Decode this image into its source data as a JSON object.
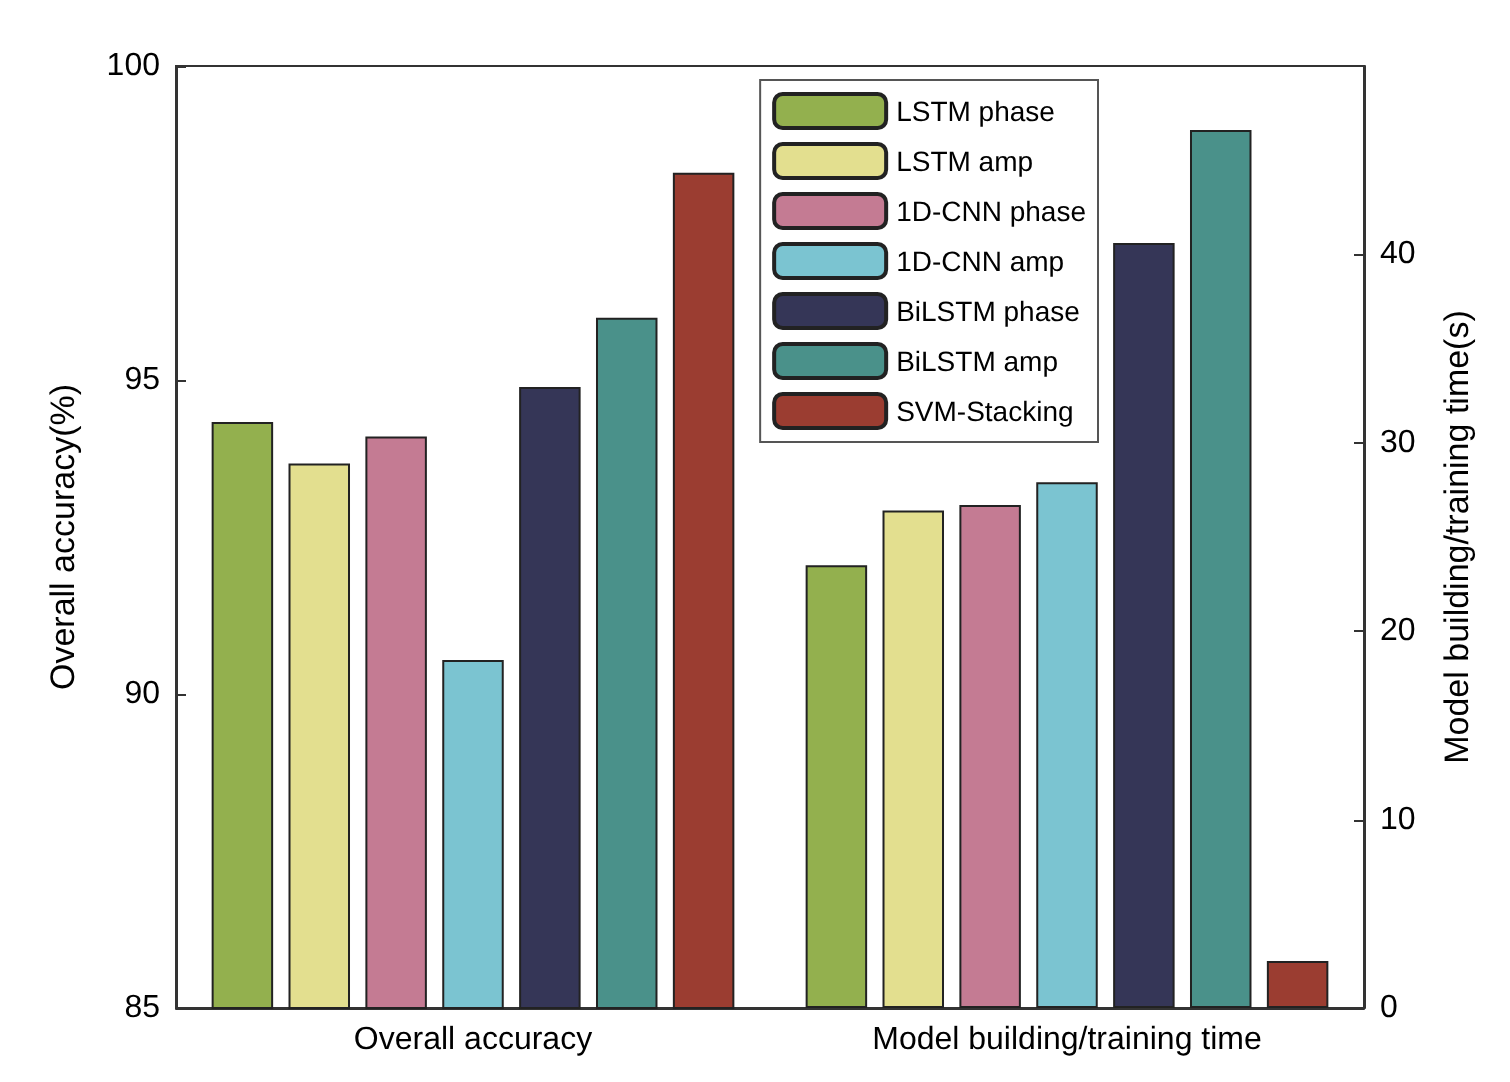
{
  "chart_data": {
    "type": "bar",
    "categories": [
      "Overall accuracy",
      "Model building/training time"
    ],
    "ylabel": "Overall accuracy(%)",
    "y2label": "Model building/training time(s)",
    "ylim": [
      85,
      100
    ],
    "yticks": [
      85,
      90,
      95,
      100
    ],
    "y2lim": [
      0,
      50
    ],
    "y2ticks": [
      0,
      10,
      20,
      30,
      40
    ],
    "legend": "top right",
    "grid": false,
    "series": [
      {
        "name": "LSTM phase",
        "color": "#93b04e",
        "values": [
          94.33,
          null
        ]
      },
      {
        "name": "LSTM amp",
        "color": "#e3df8f",
        "values": [
          93.67,
          null
        ]
      },
      {
        "name": "1D-CNN phase",
        "color": "#c47b93",
        "values": [
          94.1,
          null
        ]
      },
      {
        "name": "1D-CNN amp",
        "color": "#7bc4d1",
        "values": [
          90.54,
          null
        ]
      },
      {
        "name": "BiLSTM phase",
        "color": "#353657",
        "values": [
          94.89,
          null
        ]
      },
      {
        "name": "BiLSTM amp",
        "color": "#4a918a",
        "values": [
          95.99,
          null
        ]
      },
      {
        "name": "SVM-Stacking",
        "color": "#9b3d31",
        "values": [
          98.3,
          null
        ]
      },
      {
        "color": "#93b04e",
        "axis": "y2",
        "values": [
          null,
          23.5
        ]
      },
      {
        "color": "#e3df8f",
        "axis": "y2",
        "values": [
          null,
          26.4
        ]
      },
      {
        "color": "#c47b93",
        "axis": "y2",
        "values": [
          null,
          26.7
        ]
      },
      {
        "color": "#7bc4d1",
        "axis": "y2",
        "values": [
          null,
          27.9
        ]
      },
      {
        "color": "#353657",
        "axis": "y2",
        "values": [
          null,
          40.6
        ]
      },
      {
        "color": "#4a918a",
        "axis": "y2",
        "values": [
          null,
          46.6
        ]
      },
      {
        "color": "#9b3d31",
        "axis": "y2",
        "values": [
          null,
          2.5
        ]
      }
    ]
  }
}
